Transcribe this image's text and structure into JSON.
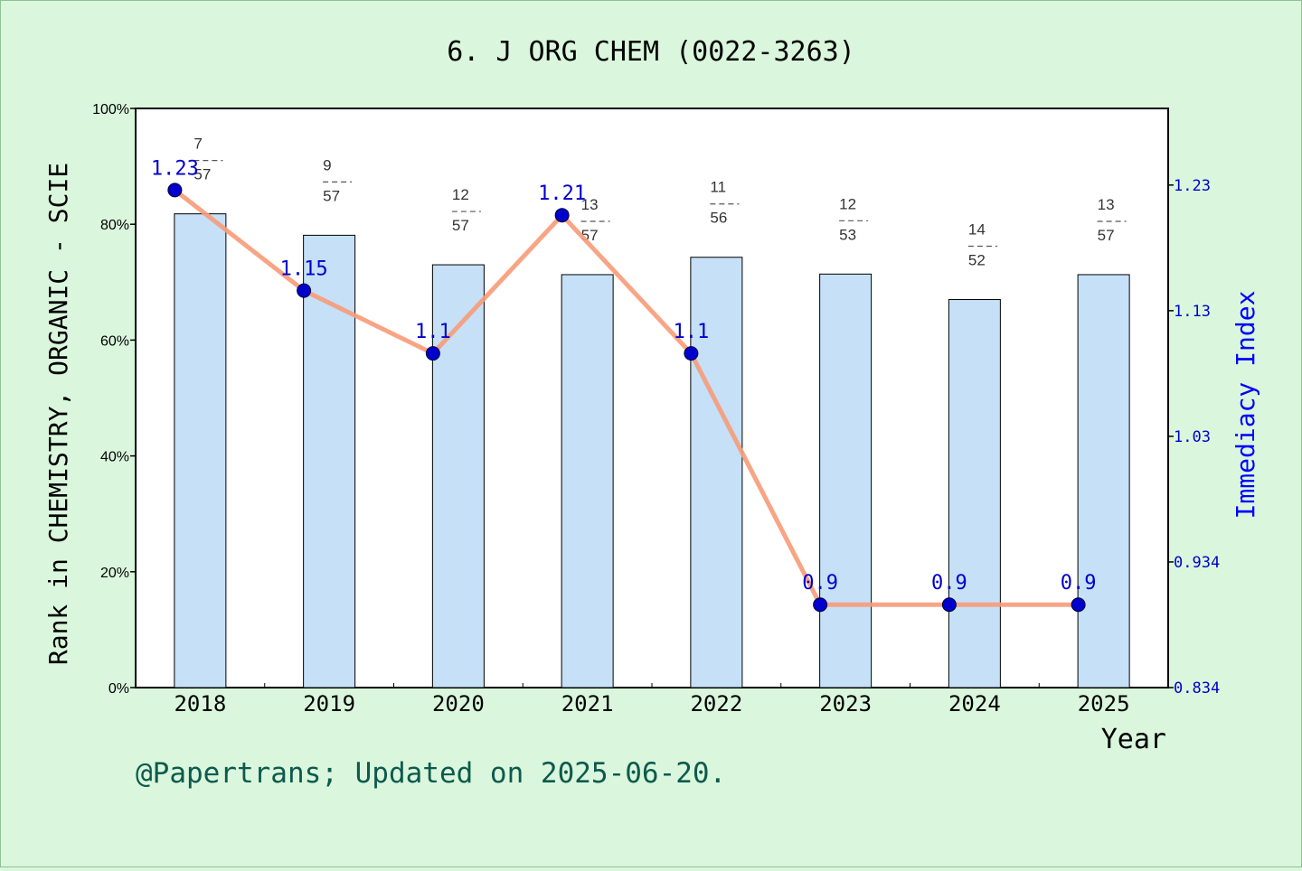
{
  "title": "6. J ORG CHEM (0022-3263)",
  "footer": "@Papertrans; Updated on 2025-06-20.",
  "colors": {
    "background": "#daf7dd",
    "plot_bg": "#ffffff",
    "bar_fill": "#c5e0f7",
    "line": "#f79b78",
    "marker": "#0000cc",
    "right_axis": "#0000ff",
    "footer_text": "#0c5a4d"
  },
  "chart_data": {
    "type": "bar",
    "title": "6. J ORG CHEM (0022-3263)",
    "xlabel": "Year",
    "ylabel": "Rank in CHEMISTRY, ORGANIC - SCIE",
    "y2label": "Immediacy Index",
    "categories": [
      "2018",
      "2019",
      "2020",
      "2021",
      "2022",
      "2023",
      "2024",
      "2025"
    ],
    "ylim": [
      0,
      100
    ],
    "yticks": [
      "0%",
      "20%",
      "40%",
      "60%",
      "80%",
      "100%"
    ],
    "y2lim": [
      0.834,
      1.295
    ],
    "y2ticks": [
      "0.834",
      "0.934",
      "1.03",
      "1.13",
      "1.23"
    ],
    "y2tick_values": [
      0.834,
      0.934,
      1.034,
      1.134,
      1.234
    ],
    "series": [
      {
        "type": "bar",
        "values": [
          81.8,
          78.1,
          73.0,
          71.3,
          74.3,
          71.4,
          67.0,
          71.3
        ],
        "ranks": [
          "7",
          "9",
          "12",
          "13",
          "11",
          "12",
          "14",
          "13"
        ],
        "totals": [
          "57",
          "57",
          "57",
          "57",
          "56",
          "53",
          "52",
          "57"
        ]
      },
      {
        "type": "line",
        "axis": "right",
        "values": [
          1.23,
          1.15,
          1.1,
          1.21,
          1.1,
          0.9,
          0.9,
          0.9
        ],
        "labels": [
          "1.23",
          "1.15",
          "1.1",
          "1.21",
          "1.1",
          "0.9",
          "0.9",
          "0.9"
        ]
      }
    ],
    "grid": false,
    "legend": "none"
  }
}
